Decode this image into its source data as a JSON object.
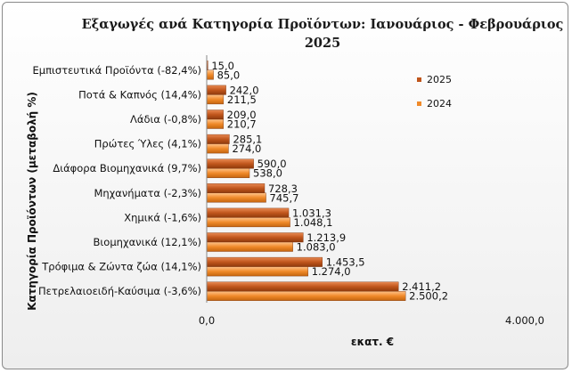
{
  "chart_data": {
    "type": "bar",
    "orientation": "horizontal",
    "title_line1": "Εξαγωγές ανά Κατηγορία Προϊόντων:  Ιανουάριος - Φεβρουάριος",
    "title_line2": "2025",
    "xlabel": "εκατ. €",
    "ylabel": "Κατηγορία Προϊόντων (μεταβολή %)",
    "xlim": [
      0,
      4000
    ],
    "x_tick_labels": [
      "0,0",
      "4.000,0"
    ],
    "categories": [
      "Εμπιστευτικά Προϊόντα (-82,4%)",
      "Ποτά & Καπνός (14,4%)",
      "Λάδια (-0,8%)",
      "Πρώτες Ύλες (4,1%)",
      "Διάφορα Βιομηχανικά (9,7%)",
      "Μηχανήματα (-2,3%)",
      "Χημικά (-1,6%)",
      "Βιομηχανικά (12,1%)",
      "Τρόφιμα & Ζώντα ζώα (14,1%)",
      "Πετρελαιοειδή-Καύσιμα (-3,6%)"
    ],
    "series": [
      {
        "name": "2025",
        "color": "#c0561c",
        "values": [
          15.0,
          242.0,
          209.0,
          285.1,
          590.0,
          728.3,
          1031.3,
          1213.9,
          1453.5,
          2411.2
        ],
        "labels": [
          "15,0",
          "242,0",
          "209,0",
          "285,1",
          "590,0",
          "728,3",
          "1.031,3",
          "1.213,9",
          "1.453,5",
          "2.411,2"
        ]
      },
      {
        "name": "2024",
        "color": "#f08a2a",
        "values": [
          85.0,
          211.5,
          210.7,
          274.0,
          538.0,
          745.7,
          1048.1,
          1083.0,
          1274.0,
          2500.2
        ],
        "labels": [
          "85,0",
          "211,5",
          "210,7",
          "274,0",
          "538,0",
          "745,7",
          "1.048,1",
          "1.083,0",
          "1.274,0",
          "2.500,2"
        ]
      }
    ],
    "legend_position": "right",
    "grid": false
  }
}
